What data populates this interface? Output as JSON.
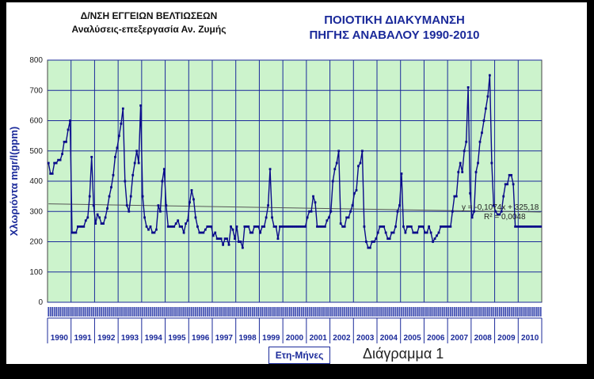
{
  "header": {
    "org_line1": "Δ/ΝΣΗ ΕΓΓΕΙΩΝ ΒΕΛΤΙΩΣΕΩΝ",
    "org_line2": "Αναλύσεις-επεξεργασία Αν. Ζυμής",
    "title_line1": "ΠΟΙΟΤΙΚΗ ΔΙΑΚΥΜΑΝΣΗ",
    "title_line2": "ΠΗΓΗΣ ΑΝΑΒΑΛΟΥ 1990-2010"
  },
  "caption": "Διάγραμμα 1",
  "colors": {
    "plot_bg": "#ccf3cc",
    "grid": "#1b2a9a",
    "series": "#0a0a8a",
    "trend": "#555555"
  },
  "chart_data": {
    "type": "line",
    "title": "ΠΟΙΟΤΙΚΗ ΔΙΑΚΥΜΑΝΣΗ ΠΗΓΗΣ ΑΝΑΒΑΛΟΥ 1990-2010",
    "xlabel": "Ετη-Μήνες",
    "ylabel": "Χλωριόντα mgr/l(ppm)",
    "ylim": [
      0,
      800
    ],
    "yticks": [
      0,
      100,
      200,
      300,
      400,
      500,
      600,
      700,
      800
    ],
    "years": [
      "1990",
      "1991",
      "1992",
      "1993",
      "1994",
      "1995",
      "1996",
      "1997",
      "1998",
      "1999",
      "2000",
      "2001",
      "2002",
      "2003",
      "2004",
      "2005",
      "2006",
      "2007",
      "2008",
      "2009",
      "2010"
    ],
    "grid": true,
    "trendline": {
      "equation": "y = -0,1074x + 325,18",
      "r2_label": "R² = 0,0048",
      "slope": -0.1074,
      "intercept": 325.18
    },
    "series": [
      {
        "values": [
          460,
          425,
          425,
          460,
          460,
          470,
          470,
          490,
          530,
          530,
          570,
          600,
          230,
          230,
          230,
          250,
          250,
          250,
          250,
          270,
          280,
          350,
          480,
          320,
          260,
          290,
          280,
          260,
          260,
          280,
          310,
          350,
          380,
          420,
          480,
          510,
          550,
          590,
          640,
          400,
          320,
          300,
          350,
          420,
          460,
          500,
          460,
          650,
          350,
          280,
          250,
          240,
          250,
          230,
          230,
          240,
          320,
          300,
          400,
          440,
          320,
          250,
          250,
          250,
          250,
          260,
          270,
          250,
          250,
          230,
          260,
          270,
          330,
          370,
          340,
          280,
          250,
          230,
          230,
          230,
          240,
          250,
          250,
          250,
          220,
          230,
          210,
          210,
          210,
          190,
          210,
          210,
          190,
          250,
          240,
          210,
          250,
          200,
          200,
          180,
          250,
          250,
          250,
          230,
          230,
          250,
          250,
          250,
          230,
          250,
          250,
          280,
          320,
          440,
          280,
          250,
          250,
          210,
          250,
          250,
          250,
          250,
          250,
          250,
          250,
          250,
          250,
          250,
          250,
          250,
          250,
          250,
          280,
          300,
          300,
          350,
          330,
          250,
          250,
          250,
          250,
          250,
          270,
          280,
          300,
          400,
          440,
          460,
          500,
          260,
          250,
          250,
          280,
          280,
          300,
          320,
          360,
          370,
          450,
          460,
          500,
          250,
          200,
          180,
          180,
          200,
          200,
          210,
          230,
          250,
          250,
          250,
          230,
          210,
          210,
          230,
          230,
          250,
          300,
          320,
          425,
          250,
          230,
          250,
          250,
          250,
          230,
          230,
          230,
          250,
          250,
          250,
          230,
          230,
          250,
          230,
          200,
          210,
          220,
          230,
          250,
          250,
          250,
          250,
          250,
          250,
          300,
          350,
          350,
          430,
          460,
          430,
          500,
          530,
          710,
          360,
          280,
          300,
          430,
          460,
          530,
          560,
          600,
          640,
          680,
          750,
          460,
          320,
          300,
          290,
          290,
          300,
          350,
          390,
          390,
          420,
          420,
          390,
          250,
          250,
          250,
          250,
          250,
          250,
          250,
          250,
          250,
          250,
          250,
          250,
          250,
          250
        ]
      }
    ]
  }
}
